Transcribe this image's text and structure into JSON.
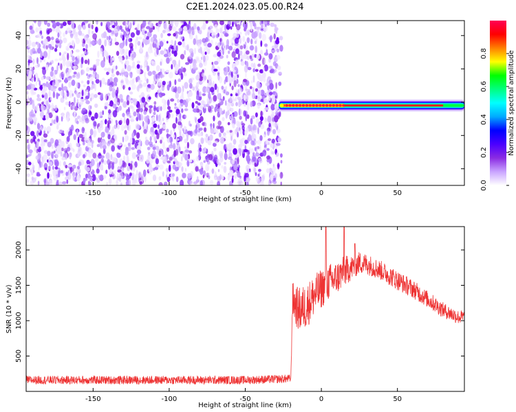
{
  "title": "C2E1.2024.023.05.00.R24",
  "chart_data": [
    {
      "type": "heatmap",
      "xlabel": "Height of straight line (km)",
      "ylabel": "Frequency (Hz)",
      "xlim": [
        -194,
        94
      ],
      "ylim": [
        -50,
        49
      ],
      "xticks": [
        -150,
        -100,
        -50,
        0,
        50
      ],
      "yticks": [
        -40,
        -20,
        0,
        20,
        40
      ],
      "grid": false,
      "colorbar": {
        "label": "Normalized spectral amplitude",
        "range": [
          0,
          1
        ],
        "ticks": [
          "0.0",
          "0.2",
          "0.4",
          "0.6",
          "0.8"
        ],
        "colormap": [
          "#ffffff",
          "#c9a3ff",
          "#8a2be2",
          "#4b00ff",
          "#0000ff",
          "#00aaff",
          "#00ffff",
          "#00ff80",
          "#00ff00",
          "#ffff00",
          "#ff8000",
          "#ff0000",
          "#ff0055"
        ]
      },
      "features": {
        "noise_region_x": [
          -194,
          -28
        ],
        "signal_line_x": [
          -28,
          94
        ],
        "signal_line_frequency_hz": -2,
        "peak_segment_x": [
          -25,
          15
        ]
      }
    },
    {
      "type": "line",
      "xlabel": "Height of straight line (km)",
      "ylabel": "SNR (10 * v/v)",
      "xlim": [
        -194,
        94
      ],
      "ylim": [
        0,
        2330
      ],
      "xticks": [
        -150,
        -100,
        -50,
        0,
        50
      ],
      "yticks": [
        500,
        1000,
        1500,
        2000
      ],
      "grid": false,
      "series": [
        {
          "color": "#ee3333",
          "envelope_x": [
            -194,
            -150,
            -100,
            -50,
            -20,
            -19,
            -15,
            -10,
            -5,
            0,
            5,
            10,
            15,
            20,
            25,
            30,
            40,
            50,
            60,
            70,
            80,
            90,
            94
          ],
          "envelope_y": [
            160,
            160,
            160,
            160,
            180,
            1300,
            1150,
            1200,
            1350,
            1450,
            1550,
            1600,
            1700,
            1750,
            1820,
            1800,
            1700,
            1570,
            1450,
            1300,
            1150,
            1050,
            1050
          ],
          "noise_amplitude": [
            60,
            60,
            60,
            60,
            60,
            250,
            320,
            320,
            300,
            280,
            260,
            240,
            220,
            180,
            160,
            150,
            140,
            140,
            130,
            120,
            110,
            100,
            100
          ],
          "peaks": [
            {
              "x": 3,
              "y": 2330
            },
            {
              "x": 15,
              "y": 2330
            },
            {
              "x": 22,
              "y": 2090
            }
          ]
        }
      ]
    }
  ]
}
